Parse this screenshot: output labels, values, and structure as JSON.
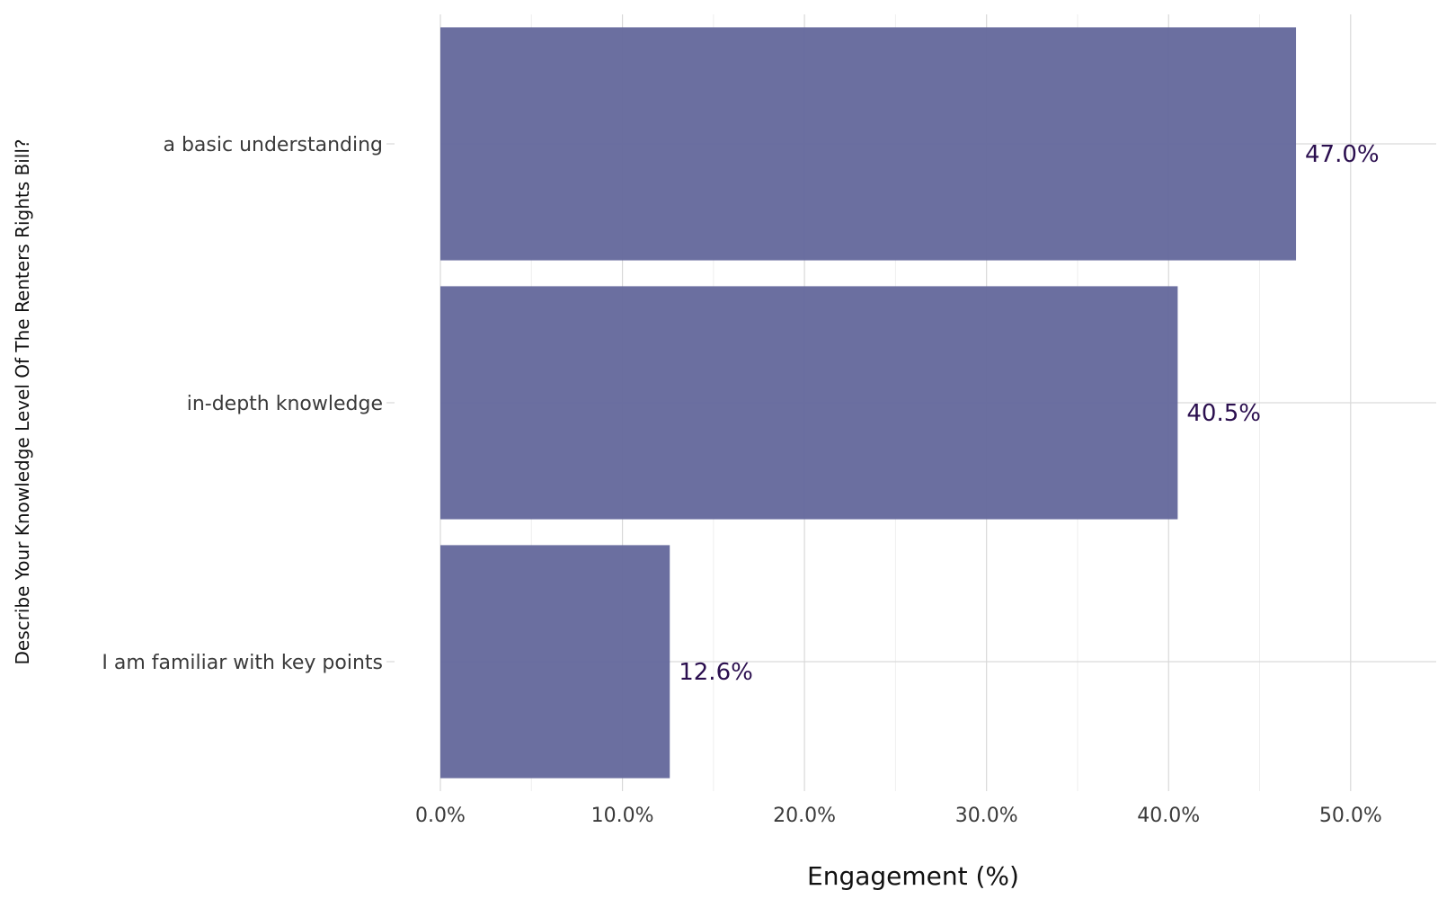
{
  "chart_data": {
    "type": "bar",
    "orientation": "horizontal",
    "categories": [
      "a basic understanding",
      "in-depth knowledge",
      "I am familiar with key points"
    ],
    "values": [
      47.0,
      40.5,
      12.6
    ],
    "data_labels": [
      "47.0%",
      "40.5%",
      "12.6%"
    ],
    "xlabel": "Engagement (%)",
    "ylabel": "Describe Your Knowledge Level Of The Renters Rights Bill?",
    "xlim": [
      0,
      54.7
    ],
    "x_ticks": [
      0,
      10,
      20,
      30,
      40,
      50
    ],
    "x_tick_labels": [
      "0.0%",
      "10.0%",
      "20.0%",
      "30.0%",
      "40.0%",
      "50.0%"
    ],
    "grid": true,
    "legend": "none",
    "colors": {
      "bar": "#65699c",
      "data_label": "#2b0f4f"
    }
  }
}
